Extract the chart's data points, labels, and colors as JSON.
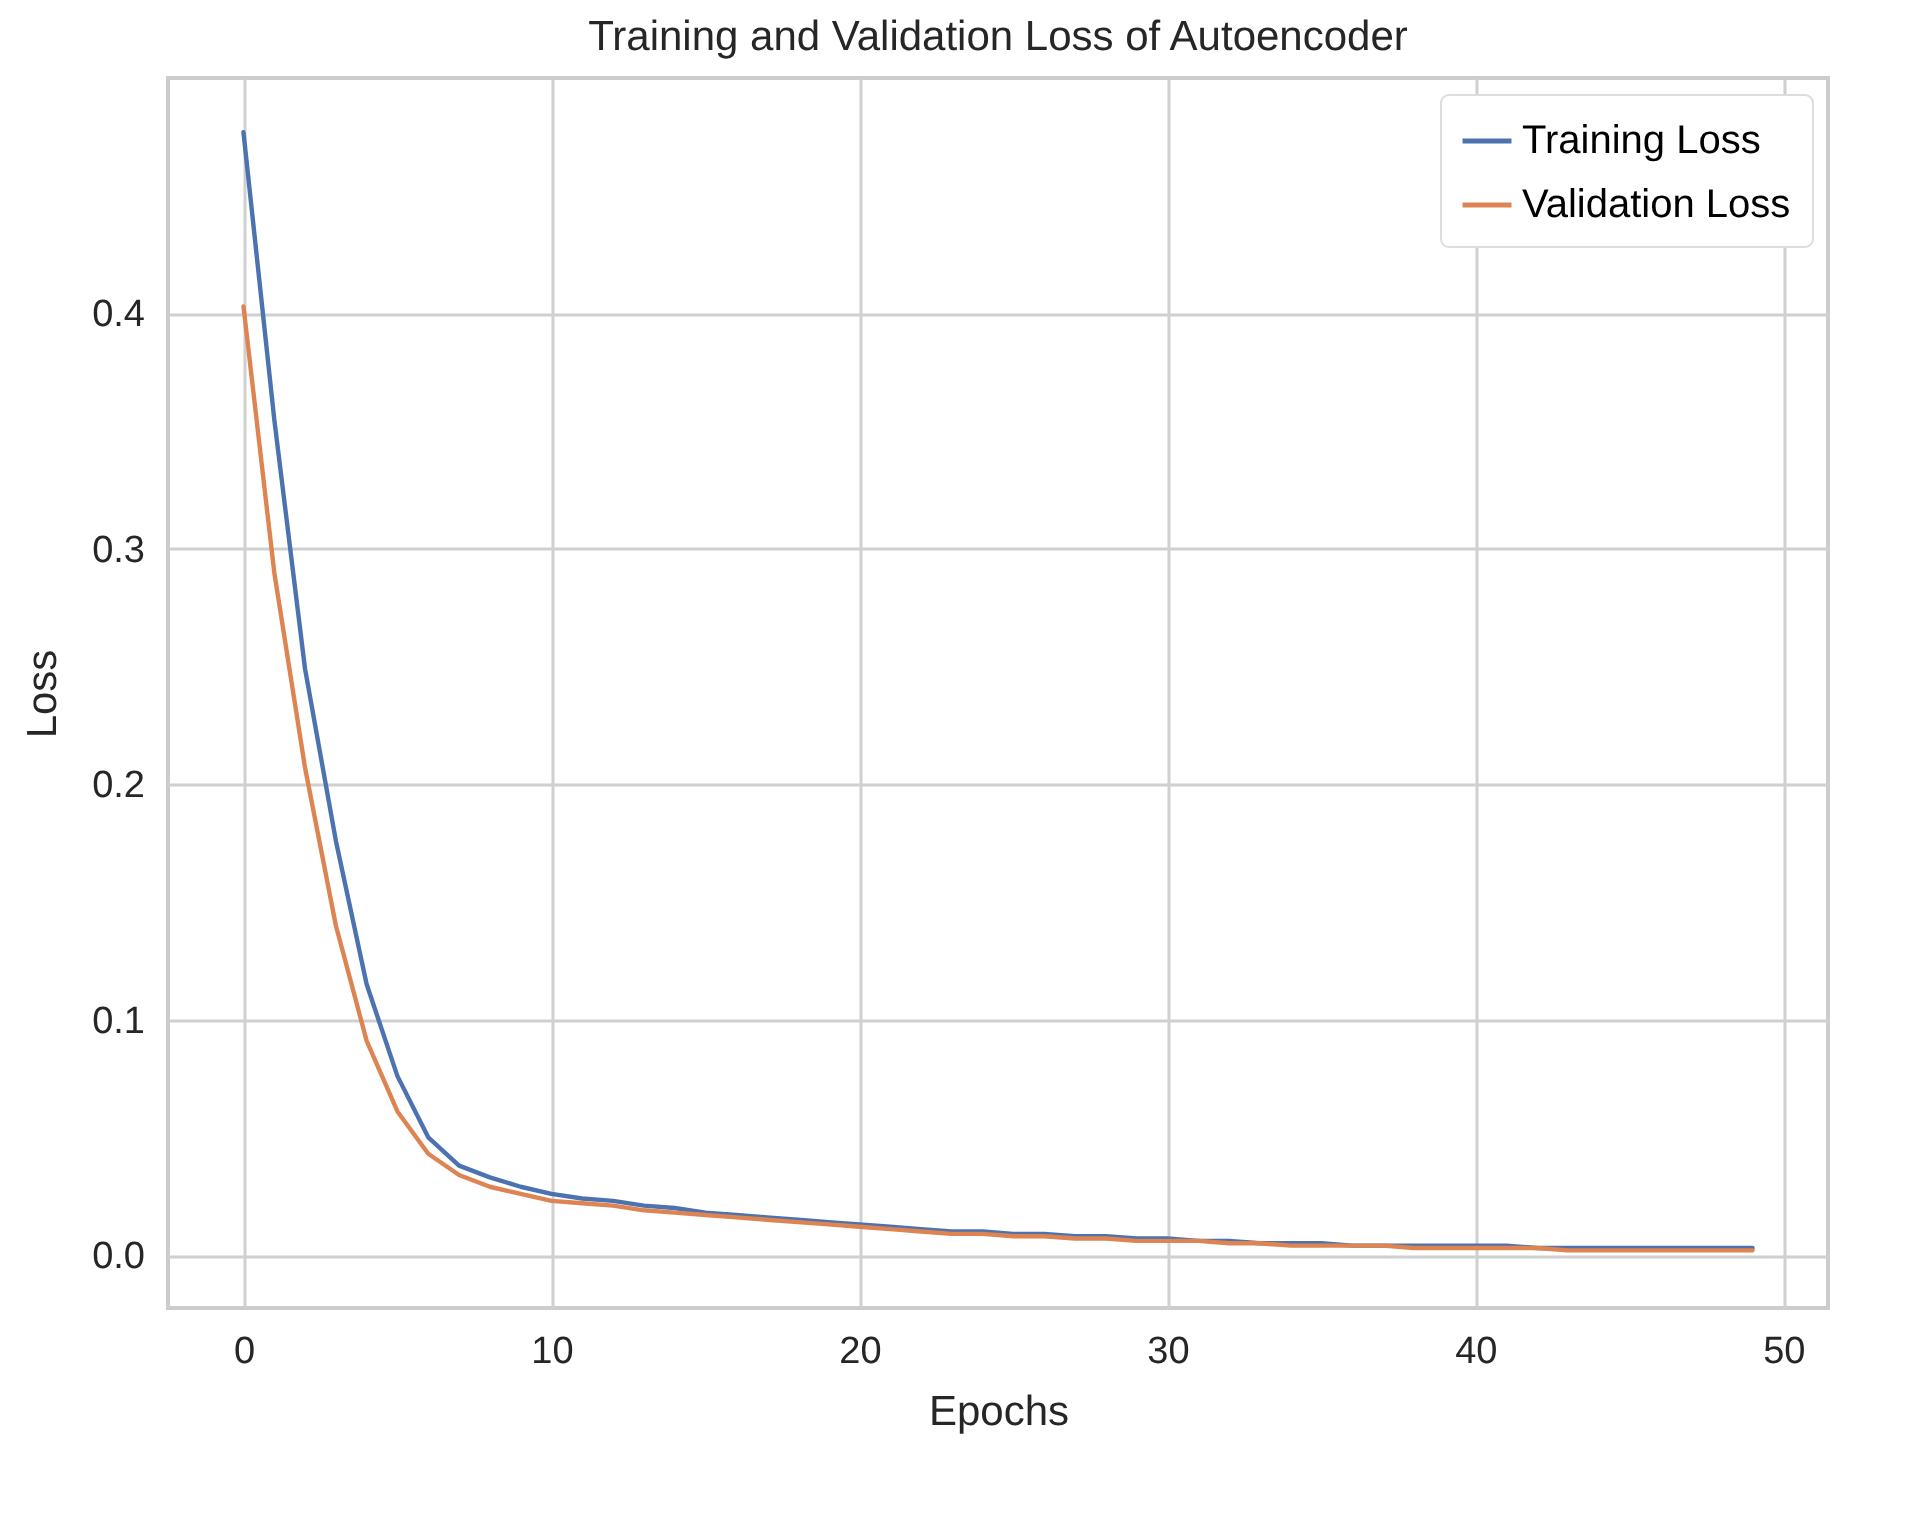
{
  "chart_data": {
    "type": "line",
    "title": "Training and Validation Loss of Autoencoder",
    "xlabel": "Epochs",
    "ylabel": "Loss",
    "x": [
      0,
      1,
      2,
      3,
      4,
      5,
      6,
      7,
      8,
      9,
      10,
      11,
      12,
      13,
      14,
      15,
      16,
      17,
      18,
      19,
      20,
      21,
      22,
      23,
      24,
      25,
      26,
      27,
      28,
      29,
      30,
      31,
      32,
      33,
      34,
      35,
      36,
      37,
      38,
      39,
      40,
      41,
      42,
      43,
      44,
      45,
      46,
      47,
      48,
      49
    ],
    "series": [
      {
        "name": "Training Loss",
        "color": "#4c72b0",
        "values": [
          0.477,
          0.355,
          0.249,
          0.176,
          0.115,
          0.076,
          0.05,
          0.038,
          0.033,
          0.029,
          0.026,
          0.024,
          0.023,
          0.021,
          0.02,
          0.018,
          0.017,
          0.016,
          0.015,
          0.014,
          0.013,
          0.012,
          0.011,
          0.01,
          0.01,
          0.009,
          0.009,
          0.008,
          0.008,
          0.007,
          0.007,
          0.006,
          0.006,
          0.005,
          0.005,
          0.005,
          0.004,
          0.004,
          0.004,
          0.004,
          0.004,
          0.004,
          0.003,
          0.003,
          0.003,
          0.003,
          0.003,
          0.003,
          0.003,
          0.003
        ]
      },
      {
        "name": "Validation Loss",
        "color": "#dd8452",
        "values": [
          0.403,
          0.29,
          0.207,
          0.14,
          0.091,
          0.061,
          0.043,
          0.034,
          0.029,
          0.026,
          0.023,
          0.022,
          0.021,
          0.019,
          0.018,
          0.017,
          0.016,
          0.015,
          0.014,
          0.013,
          0.012,
          0.011,
          0.01,
          0.009,
          0.009,
          0.008,
          0.008,
          0.007,
          0.007,
          0.006,
          0.006,
          0.006,
          0.005,
          0.005,
          0.004,
          0.004,
          0.004,
          0.004,
          0.003,
          0.003,
          0.003,
          0.003,
          0.003,
          0.002,
          0.002,
          0.002,
          0.002,
          0.002,
          0.002,
          0.002
        ]
      }
    ],
    "xlim": [
      -2.45,
      51.45
    ],
    "xticks": [
      0,
      10,
      20,
      30,
      40,
      50
    ],
    "ylim": [
      -0.0225,
      0.5
    ],
    "yticks": [
      {
        "value": 0,
        "label": "0.0"
      },
      0.1,
      0.2,
      0.3,
      0.4
    ],
    "grid": true,
    "legend": "top right"
  }
}
